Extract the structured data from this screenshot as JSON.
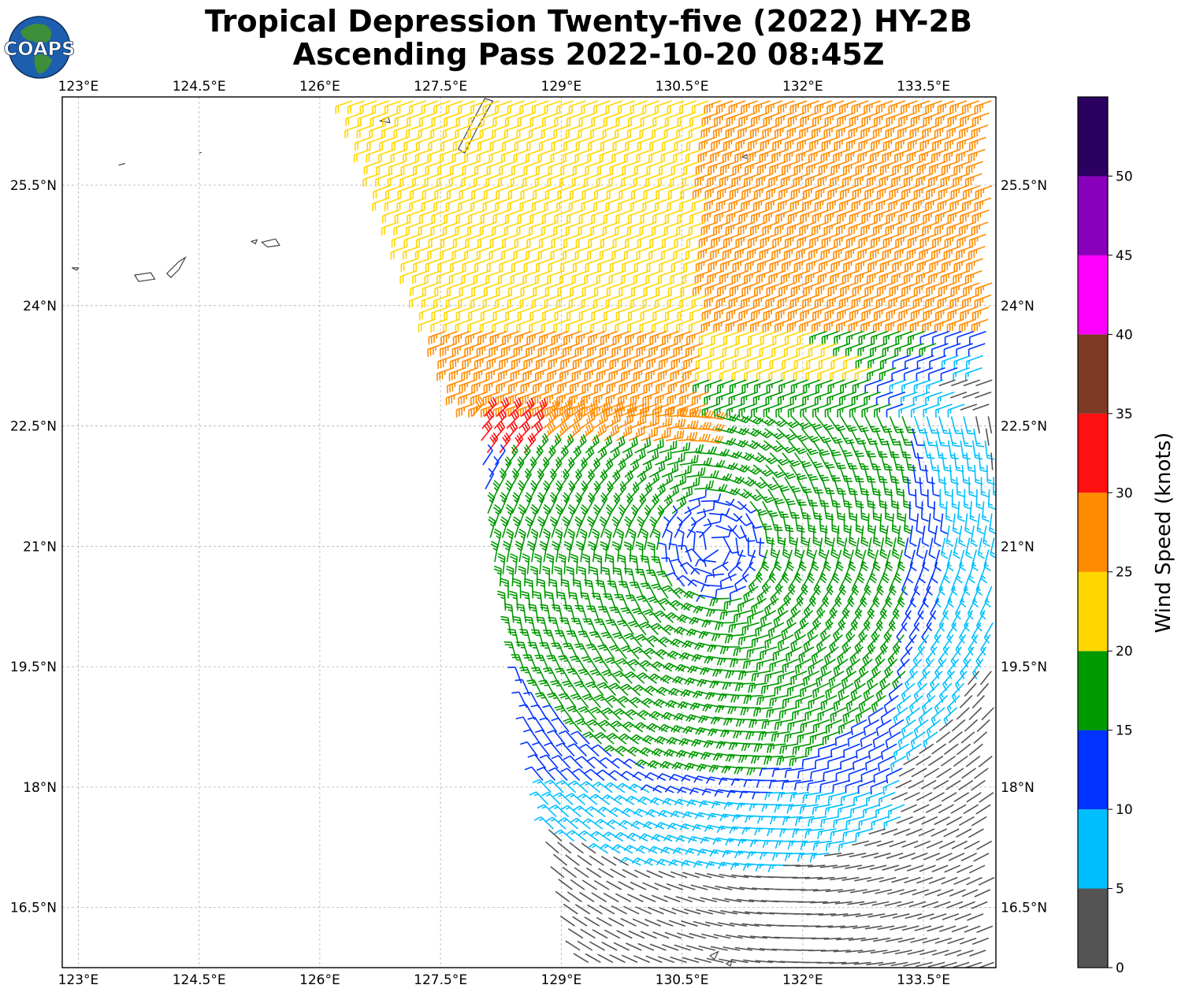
{
  "title": {
    "line1": "Tropical Depression Twenty-five (2022) HY-2B",
    "line2": "Ascending Pass 2022-10-20 08:45Z"
  },
  "logo": {
    "text": "COAPS"
  },
  "map": {
    "lon_range": [
      122.8,
      134.4
    ],
    "lat_range": [
      15.75,
      26.6
    ],
    "lon_ticks": [
      "123°E",
      "124.5°E",
      "126°E",
      "127.5°E",
      "129°E",
      "130.5°E",
      "132°E",
      "133.5°E"
    ],
    "lon_tick_values": [
      123,
      124.5,
      126,
      127.5,
      129,
      130.5,
      132,
      133.5
    ],
    "lat_ticks": [
      "25.5°N",
      "24°N",
      "22.5°N",
      "21°N",
      "19.5°N",
      "18°N",
      "16.5°N"
    ],
    "lat_tick_values": [
      25.5,
      24,
      22.5,
      21,
      19.5,
      18,
      16.5
    ],
    "gridlines": true,
    "storm_center": [
      130.9,
      21.0
    ]
  },
  "colorbar": {
    "label": "Wind Speed (knots)",
    "tick_labels": [
      "0",
      "5",
      "10",
      "15",
      "20",
      "25",
      "30",
      "35",
      "40",
      "45",
      "50"
    ],
    "bins": [
      {
        "min": 0,
        "max": 5,
        "color": "#545454"
      },
      {
        "min": 5,
        "max": 10,
        "color": "#00bfff"
      },
      {
        "min": 10,
        "max": 15,
        "color": "#0033ff"
      },
      {
        "min": 15,
        "max": 20,
        "color": "#009900"
      },
      {
        "min": 20,
        "max": 25,
        "color": "#ffd700"
      },
      {
        "min": 25,
        "max": 30,
        "color": "#ff8c00"
      },
      {
        "min": 30,
        "max": 35,
        "color": "#ff1010"
      },
      {
        "min": 35,
        "max": 40,
        "color": "#7f3a26"
      },
      {
        "min": 40,
        "max": 45,
        "color": "#ff00ff"
      },
      {
        "min": 45,
        "max": 50,
        "color": "#8800bb"
      },
      {
        "min": 50,
        "max": 55,
        "color": "#2c0060"
      }
    ]
  }
}
